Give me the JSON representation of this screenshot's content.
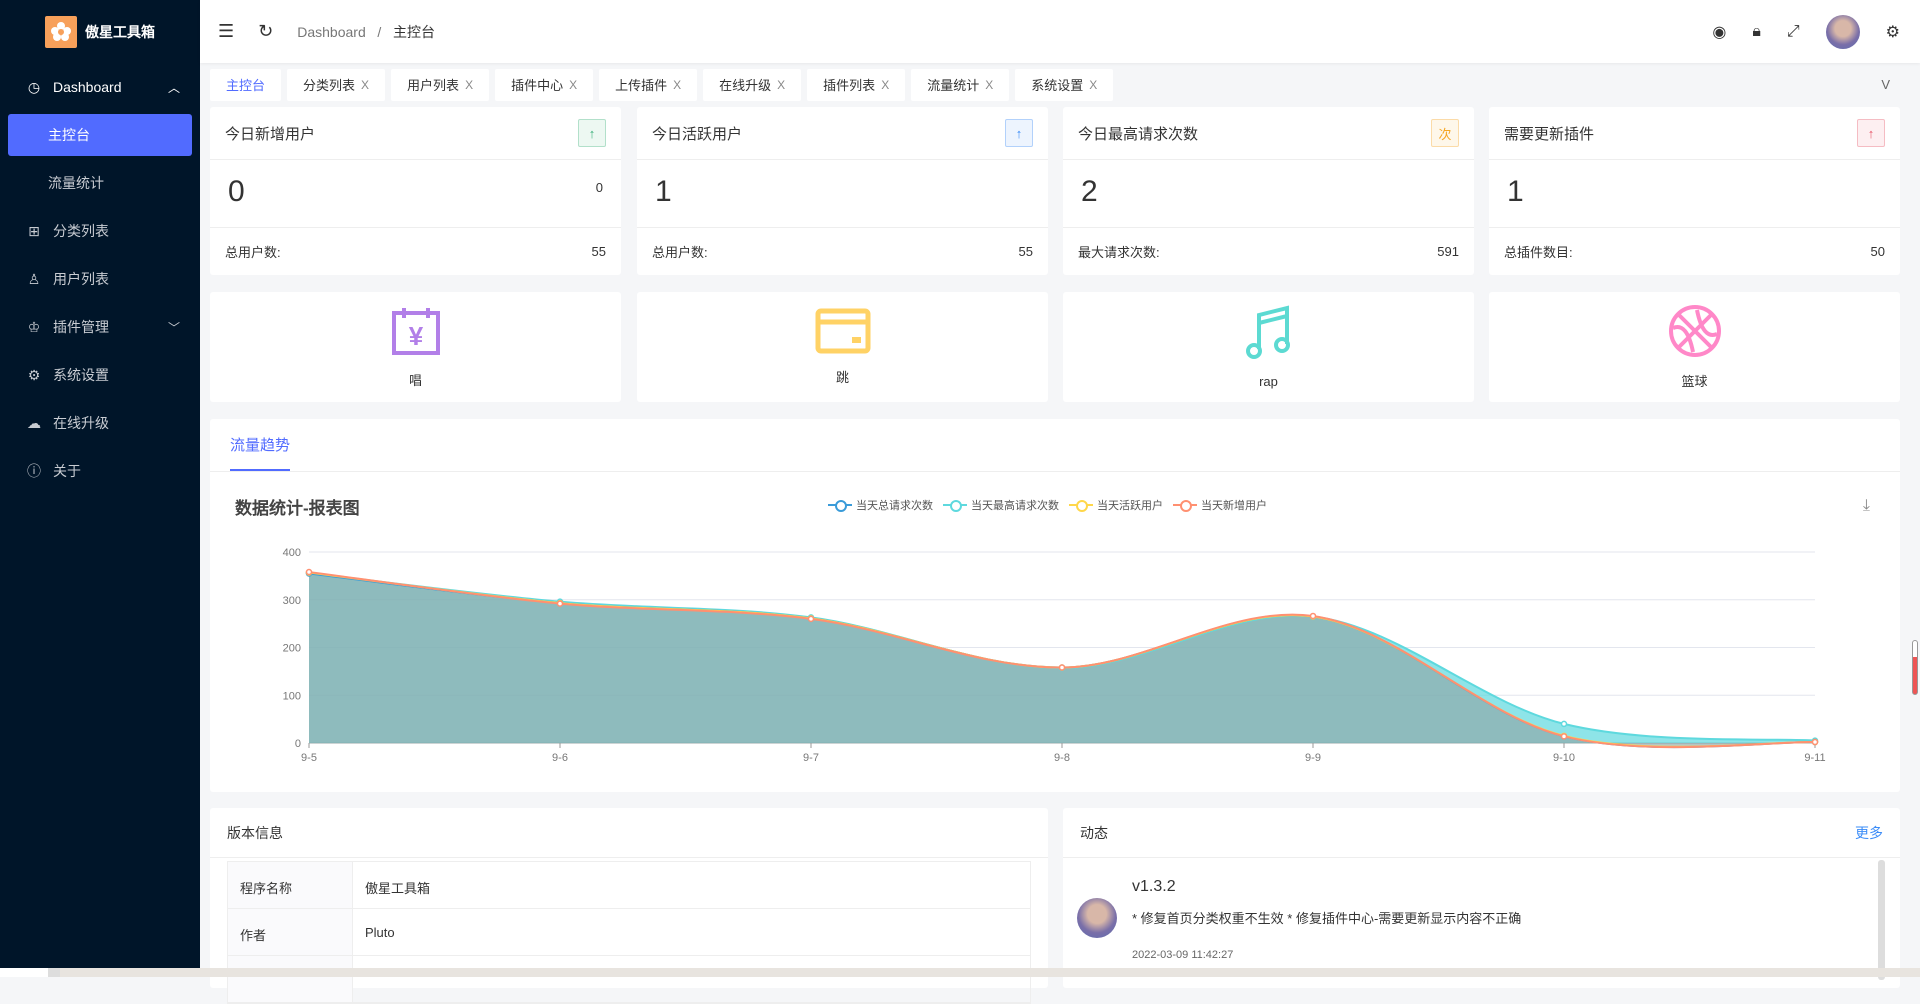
{
  "app": {
    "name": "傲星工具箱"
  },
  "sidebar": {
    "items": [
      {
        "label": "Dashboard",
        "icon": "dashboard-icon",
        "expanded": true
      },
      {
        "label": "主控台",
        "active": true
      },
      {
        "label": "流量统计"
      },
      {
        "label": "分类列表",
        "icon": "gift-icon"
      },
      {
        "label": "用户列表",
        "icon": "user-icon"
      },
      {
        "label": "插件管理",
        "icon": "crown-icon"
      },
      {
        "label": "系统设置",
        "icon": "gear-icon"
      },
      {
        "label": "在线升级",
        "icon": "cloud-icon"
      },
      {
        "label": "关于",
        "icon": "info-icon"
      }
    ]
  },
  "header": {
    "breadcrumb": [
      "Dashboard",
      "主控台"
    ],
    "separator": "/"
  },
  "tabs": [
    {
      "label": "主控台",
      "active": true
    },
    {
      "label": "分类列表"
    },
    {
      "label": "用户列表"
    },
    {
      "label": "插件中心"
    },
    {
      "label": "上传插件"
    },
    {
      "label": "在线升级"
    },
    {
      "label": "插件列表"
    },
    {
      "label": "流量统计"
    },
    {
      "label": "系统设置"
    }
  ],
  "tab_close": "X",
  "tab_more": "V",
  "stats": [
    {
      "title": "今日新增用户",
      "badge": "↑",
      "badge_color": "#3bb07a",
      "value": "0",
      "small": "0",
      "footer_label": "总用户数:",
      "footer_value": "55"
    },
    {
      "title": "今日活跃用户",
      "badge": "↑",
      "badge_color": "#3b8cf7",
      "value": "1",
      "small": "",
      "footer_label": "总用户数:",
      "footer_value": "55"
    },
    {
      "title": "今日最高请求次数",
      "badge": "次",
      "badge_color": "#f5a623",
      "value": "2",
      "small": "",
      "footer_label": "最大请求次数:",
      "footer_value": "591"
    },
    {
      "title": "需要更新插件",
      "badge": "↑",
      "badge_color": "#e8566a",
      "value": "1",
      "small": "",
      "footer_label": "总插件数目:",
      "footer_value": "50"
    }
  ],
  "shortcuts": [
    {
      "label": "唱",
      "icon": "calendar-yen-icon",
      "color": "#b27fe8"
    },
    {
      "label": "跳",
      "icon": "card-icon",
      "color": "#ffd265"
    },
    {
      "label": "rap",
      "icon": "music-note-icon",
      "color": "#5cdad2"
    },
    {
      "label": "篮球",
      "icon": "basketball-icon",
      "color": "#ff88c8"
    }
  ],
  "chart_tab": "流量趋势",
  "chart_data": {
    "type": "area",
    "title": "数据统计-报表图",
    "categories": [
      "9-5",
      "9-6",
      "9-7",
      "9-8",
      "9-9",
      "9-10",
      "9-11"
    ],
    "ylim": [
      0,
      400
    ],
    "yticks": [
      0,
      100,
      200,
      300,
      400
    ],
    "grid": true,
    "legend": "top-center",
    "series": [
      {
        "name": "当天总请求次数",
        "color": "#3a9bd9",
        "values": [
          355,
          293,
          261,
          158,
          265,
          14,
          2
        ]
      },
      {
        "name": "当天最高请求次数",
        "color": "#5ed9de",
        "values": [
          356,
          296,
          263,
          157,
          265,
          40,
          5
        ]
      },
      {
        "name": "当天活跃用户",
        "color": "#ffd74a",
        "values": [
          357,
          293,
          261,
          158,
          265,
          15,
          2
        ]
      },
      {
        "name": "当天新增用户",
        "color": "#ff9071",
        "values": [
          358,
          292,
          260,
          158,
          266,
          14,
          2
        ]
      }
    ]
  },
  "version": {
    "title": "版本信息",
    "rows": [
      {
        "key": "程序名称",
        "value": "傲星工具箱"
      },
      {
        "key": "作者",
        "value": "Pluto"
      },
      {
        "key": "",
        "value": ""
      }
    ]
  },
  "news": {
    "title": "动态",
    "more": "更多",
    "items": [
      {
        "version": "v1.3.2",
        "text": "* 修复首页分类权重不生效 * 修复插件中心-需要更新显示内容不正确",
        "time": "2022-03-09 11:42:27"
      }
    ]
  }
}
